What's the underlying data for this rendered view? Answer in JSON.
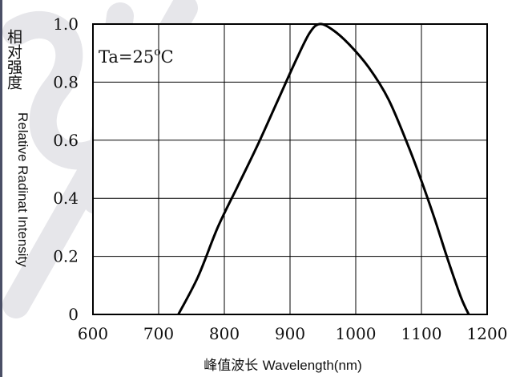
{
  "chart_data": {
    "type": "line",
    "xlabel_cn": "峰值波长",
    "xlabel_en": "Wavelength(nm)",
    "ylabel_cn": "相对强度",
    "ylabel_en": "Relative Radinat Intensity",
    "annotation": "Ta=25°C",
    "annotation_parts": {
      "prefix": "Ta=25",
      "degree": "o",
      "suffix": "C"
    },
    "xlim": [
      600,
      1200
    ],
    "ylim": [
      0,
      1.0
    ],
    "xticks": [
      600,
      700,
      800,
      900,
      1000,
      1100,
      1200
    ],
    "yticks": [
      0,
      0.2,
      0.4,
      0.6,
      0.8,
      1.0
    ],
    "xtick_labels": [
      "600",
      "700",
      "800",
      "900",
      "1000",
      "1100",
      "1200"
    ],
    "ytick_labels": [
      "0",
      "0.2",
      "0.4",
      "0.6",
      "0.8",
      "1.0"
    ],
    "grid": true,
    "series": [
      {
        "color": "#000000",
        "points": [
          [
            730,
            0.0
          ],
          [
            760,
            0.13
          ],
          [
            790,
            0.3
          ],
          [
            820,
            0.44
          ],
          [
            850,
            0.58
          ],
          [
            880,
            0.73
          ],
          [
            910,
            0.88
          ],
          [
            930,
            0.97
          ],
          [
            945,
            1.0
          ],
          [
            965,
            0.98
          ],
          [
            990,
            0.93
          ],
          [
            1020,
            0.85
          ],
          [
            1050,
            0.74
          ],
          [
            1080,
            0.58
          ],
          [
            1100,
            0.46
          ],
          [
            1120,
            0.33
          ],
          [
            1140,
            0.19
          ],
          [
            1160,
            0.06
          ],
          [
            1172,
            0.0
          ]
        ]
      }
    ]
  }
}
